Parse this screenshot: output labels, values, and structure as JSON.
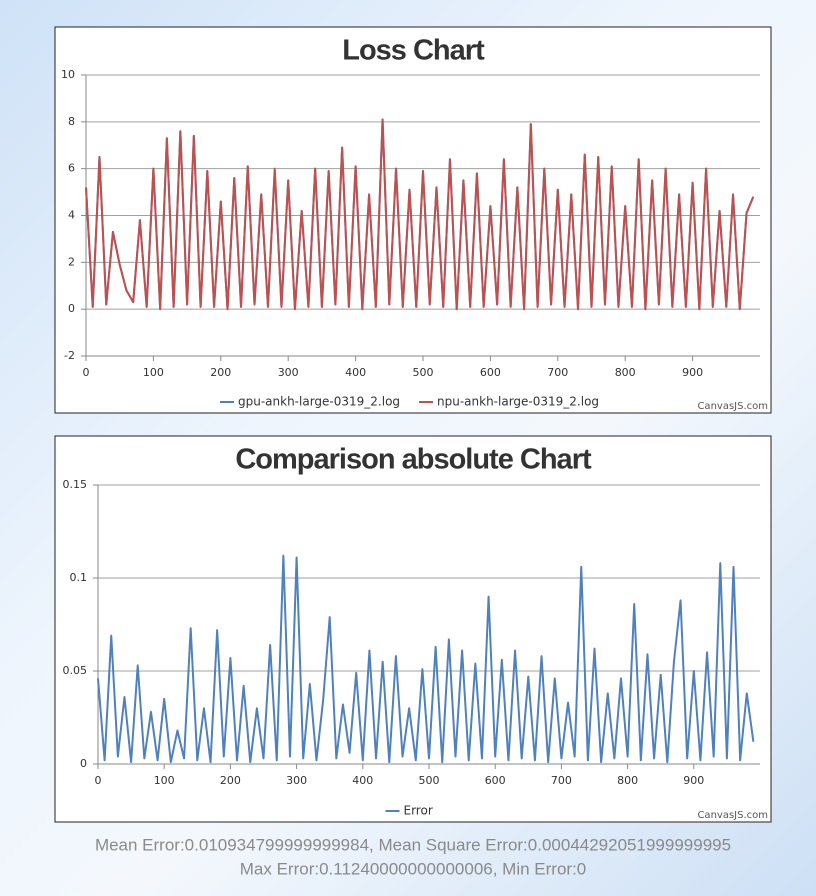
{
  "chart_data": [
    {
      "type": "line",
      "title": "Loss Chart",
      "credit": "CanvasJS.com",
      "x": [
        0,
        10,
        20,
        30,
        40,
        50,
        60,
        70,
        80,
        90,
        100,
        110,
        120,
        130,
        140,
        150,
        160,
        170,
        180,
        190,
        200,
        210,
        220,
        230,
        240,
        250,
        260,
        270,
        280,
        290,
        300,
        310,
        320,
        330,
        340,
        350,
        360,
        370,
        380,
        390,
        400,
        410,
        420,
        430,
        440,
        450,
        460,
        470,
        480,
        490,
        500,
        510,
        520,
        530,
        540,
        550,
        560,
        570,
        580,
        590,
        600,
        610,
        620,
        630,
        640,
        650,
        660,
        670,
        680,
        690,
        700,
        710,
        720,
        730,
        740,
        750,
        760,
        770,
        780,
        790,
        800,
        810,
        820,
        830,
        840,
        850,
        860,
        870,
        880,
        890,
        900,
        910,
        920,
        930,
        940,
        950,
        960,
        970,
        980,
        990
      ],
      "series": [
        {
          "name": "gpu-ankh-large-0319_2.log",
          "color": "#4f81bc",
          "values": [
            5.2,
            0.1,
            6.5,
            0.2,
            3.3,
            1.9,
            0.8,
            0.3,
            3.8,
            0.1,
            6.0,
            0.0,
            7.3,
            0.1,
            7.6,
            0.2,
            7.4,
            0.1,
            5.9,
            0.1,
            4.6,
            0.0,
            5.6,
            0.1,
            6.1,
            0.2,
            4.9,
            0.1,
            5.9,
            0.1,
            5.5,
            0.0,
            4.2,
            0.1,
            6.0,
            0.1,
            5.9,
            0.2,
            6.9,
            0.1,
            6.1,
            0.0,
            4.9,
            0.1,
            8.1,
            0.2,
            6.0,
            0.1,
            5.1,
            0.1,
            5.9,
            0.2,
            5.2,
            0.1,
            6.4,
            0.0,
            5.5,
            0.1,
            5.8,
            0.1,
            4.4,
            0.2,
            6.4,
            0.1,
            5.2,
            0.0,
            7.9,
            0.1,
            6.0,
            0.2,
            5.1,
            0.1,
            4.9,
            0.0,
            6.6,
            0.1,
            6.5,
            0.2,
            6.1,
            0.1,
            4.4,
            0.1,
            6.4,
            0.0,
            5.5,
            0.2,
            6.0,
            0.1,
            4.9,
            0.1,
            5.4,
            0.0,
            6.0,
            0.1,
            4.2,
            0.1,
            4.9,
            0.0,
            4.1,
            4.8
          ]
        },
        {
          "name": "npu-ankh-large-0319_2.log",
          "color": "#c0504e",
          "values": [
            5.2,
            0.1,
            6.5,
            0.2,
            3.3,
            1.9,
            0.8,
            0.3,
            3.8,
            0.1,
            6.0,
            0.0,
            7.3,
            0.1,
            7.6,
            0.2,
            7.4,
            0.1,
            5.9,
            0.1,
            4.6,
            0.0,
            5.6,
            0.1,
            6.1,
            0.2,
            4.9,
            0.1,
            6.0,
            0.1,
            5.5,
            0.0,
            4.2,
            0.1,
            6.0,
            0.1,
            5.9,
            0.2,
            6.9,
            0.1,
            6.1,
            0.0,
            4.9,
            0.1,
            8.1,
            0.2,
            6.0,
            0.1,
            5.1,
            0.1,
            5.9,
            0.2,
            5.2,
            0.1,
            6.4,
            0.0,
            5.5,
            0.1,
            5.8,
            0.1,
            4.4,
            0.2,
            6.4,
            0.1,
            5.2,
            0.0,
            7.9,
            0.1,
            6.0,
            0.2,
            5.1,
            0.1,
            4.9,
            0.0,
            6.6,
            0.1,
            6.5,
            0.2,
            6.1,
            0.1,
            4.4,
            0.1,
            6.4,
            0.0,
            5.5,
            0.2,
            6.0,
            0.1,
            4.9,
            0.1,
            5.4,
            0.0,
            6.0,
            0.1,
            4.2,
            0.1,
            4.9,
            0.0,
            4.1,
            4.8
          ]
        }
      ],
      "xlim": [
        0,
        1000
      ],
      "xticks": [
        0,
        100,
        200,
        300,
        400,
        500,
        600,
        700,
        800,
        900
      ],
      "ylim": [
        -2,
        10
      ],
      "yticks": [
        -2,
        0,
        2,
        4,
        6,
        8,
        10
      ],
      "grid": true
    },
    {
      "type": "line",
      "title": "Comparison absolute Chart",
      "credit": "CanvasJS.com",
      "x": [
        0,
        10,
        20,
        30,
        40,
        50,
        60,
        70,
        80,
        90,
        100,
        110,
        120,
        130,
        140,
        150,
        160,
        170,
        180,
        190,
        200,
        210,
        220,
        230,
        240,
        250,
        260,
        270,
        280,
        290,
        300,
        310,
        320,
        330,
        340,
        350,
        360,
        370,
        380,
        390,
        400,
        410,
        420,
        430,
        440,
        450,
        460,
        470,
        480,
        490,
        500,
        510,
        520,
        530,
        540,
        550,
        560,
        570,
        580,
        590,
        600,
        610,
        620,
        630,
        640,
        650,
        660,
        670,
        680,
        690,
        700,
        710,
        720,
        730,
        740,
        750,
        760,
        770,
        780,
        790,
        800,
        810,
        820,
        830,
        840,
        850,
        860,
        870,
        880,
        890,
        900,
        910,
        920,
        930,
        940,
        950,
        960,
        970,
        980,
        990
      ],
      "series": [
        {
          "name": "Error",
          "color": "#4f81bc",
          "values": [
            0.046,
            0.002,
            0.069,
            0.004,
            0.036,
            0.001,
            0.053,
            0.003,
            0.028,
            0.002,
            0.035,
            0.001,
            0.018,
            0.003,
            0.073,
            0.002,
            0.03,
            0.001,
            0.072,
            0.004,
            0.057,
            0.002,
            0.042,
            0.001,
            0.03,
            0.003,
            0.064,
            0.002,
            0.112,
            0.004,
            0.111,
            0.003,
            0.043,
            0.002,
            0.034,
            0.079,
            0.003,
            0.032,
            0.006,
            0.049,
            0.002,
            0.061,
            0.003,
            0.055,
            0.001,
            0.058,
            0.004,
            0.03,
            0.002,
            0.051,
            0.003,
            0.063,
            0.001,
            0.067,
            0.004,
            0.061,
            0.002,
            0.054,
            0.003,
            0.09,
            0.004,
            0.056,
            0.002,
            0.061,
            0.003,
            0.047,
            0.002,
            0.058,
            0.001,
            0.046,
            0.003,
            0.033,
            0.004,
            0.106,
            0.002,
            0.062,
            0.001,
            0.038,
            0.003,
            0.046,
            0.004,
            0.086,
            0.002,
            0.059,
            0.003,
            0.048,
            0.001,
            0.055,
            0.088,
            0.003,
            0.05,
            0.002,
            0.06,
            0.004,
            0.108,
            0.003,
            0.106,
            0.002,
            0.038,
            0.012
          ]
        }
      ],
      "xlim": [
        0,
        1000
      ],
      "xticks": [
        0,
        100,
        200,
        300,
        400,
        500,
        600,
        700,
        800,
        900
      ],
      "ylim": [
        0,
        0.15
      ],
      "yticks": [
        0,
        0.05,
        0.1,
        0.15
      ],
      "grid": true
    }
  ],
  "footer": [
    "Mean Error:0.010934799999999984, Mean Square Error:0.00044292051999999995",
    "Max Error:0.11240000000000006, Min Error:0"
  ]
}
